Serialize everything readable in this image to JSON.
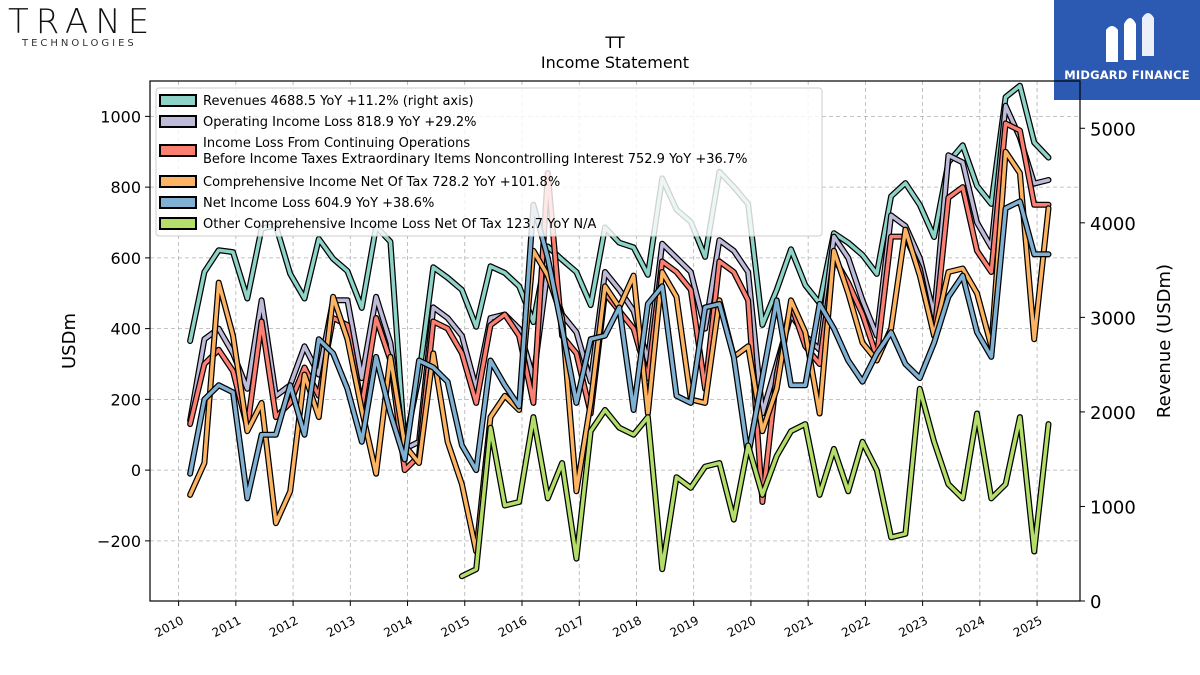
{
  "header": {
    "company_logo_text": "TRANE",
    "company_logo_sub": "TECHNOLOGIES",
    "brand_name": "MIDGARD FINANCE"
  },
  "colors": {
    "revenues": "#8dd3c7",
    "operating_income": "#bebada",
    "pretax_income": "#fb8072",
    "comprehensive_income": "#fdb462",
    "net_income": "#80b1d3",
    "other_comprehensive": "#b3de69",
    "brand_bg": "#2c5ab3"
  },
  "chart_data": {
    "type": "line",
    "title": "TT",
    "subtitle": "Income Statement",
    "ylabel": "USDm",
    "ylabel_right": "Revenue (USDm)",
    "ylim": [
      -370,
      1100
    ],
    "ylim_right": [
      0,
      5500
    ],
    "xlim": [
      2009.5,
      2025.75
    ],
    "yticks": [
      -200,
      0,
      200,
      400,
      600,
      800,
      1000
    ],
    "yticks_right": [
      0,
      1000,
      2000,
      3000,
      4000,
      5000
    ],
    "xticks": [
      "2010",
      "2011",
      "2012",
      "2013",
      "2014",
      "2015",
      "2016",
      "2017",
      "2018",
      "2019",
      "2020",
      "2021",
      "2022",
      "2023",
      "2024",
      "2025"
    ],
    "grid": true,
    "legend_position": "top-left",
    "x": [
      2010.2,
      2010.45,
      2010.7,
      2010.95,
      2011.2,
      2011.45,
      2011.7,
      2011.95,
      2012.2,
      2012.45,
      2012.7,
      2012.95,
      2013.2,
      2013.45,
      2013.7,
      2013.95,
      2014.2,
      2014.45,
      2014.7,
      2014.95,
      2015.2,
      2015.45,
      2015.7,
      2015.95,
      2016.2,
      2016.45,
      2016.7,
      2016.95,
      2017.2,
      2017.45,
      2017.7,
      2017.95,
      2018.2,
      2018.45,
      2018.7,
      2018.95,
      2019.2,
      2019.45,
      2019.7,
      2019.95,
      2020.2,
      2020.45,
      2020.7,
      2020.95,
      2021.2,
      2021.45,
      2021.7,
      2021.95,
      2022.2,
      2022.45,
      2022.7,
      2022.95,
      2023.2,
      2023.45,
      2023.7,
      2023.95,
      2024.2,
      2024.45,
      2024.7,
      2024.95,
      2025.2
    ],
    "series": [
      {
        "name": "Revenues",
        "legend": "Revenues  4688.5 YoY +11.2% (right axis)",
        "axis": "right",
        "color_key": "revenues",
        "values": [
          2750,
          3480,
          3710,
          3690,
          3200,
          3940,
          3970,
          3460,
          3200,
          3830,
          3620,
          3490,
          3100,
          3960,
          3800,
          1640,
          2380,
          3530,
          3420,
          3290,
          2900,
          3540,
          3470,
          3330,
          2950,
          3750,
          3610,
          3480,
          3130,
          3950,
          3790,
          3740,
          3450,
          4470,
          4140,
          4010,
          3640,
          4540,
          4380,
          4200,
          2920,
          3290,
          3720,
          3340,
          3150,
          3890,
          3790,
          3660,
          3460,
          4280,
          4420,
          4190,
          3850,
          4640,
          4820,
          4390,
          4200,
          5330,
          5450,
          4850,
          4690
        ]
      },
      {
        "name": "Operating Income Loss",
        "legend": "Operating Income Loss  818.9 YoY +29.2%",
        "axis": "left",
        "color_key": "operating_income",
        "values": [
          140,
          370,
          400,
          330,
          230,
          480,
          210,
          240,
          350,
          270,
          480,
          480,
          260,
          490,
          360,
          60,
          80,
          460,
          430,
          380,
          230,
          430,
          440,
          400,
          260,
          570,
          440,
          390,
          250,
          560,
          510,
          450,
          310,
          640,
          600,
          560,
          400,
          650,
          620,
          560,
          160,
          300,
          440,
          380,
          340,
          660,
          600,
          480,
          380,
          720,
          690,
          600,
          440,
          890,
          870,
          700,
          630,
          1030,
          940,
          810,
          820
        ]
      },
      {
        "name": "Income Loss From Continuing Operations Before Income Taxes Extraordinary Items Noncontrolling Interest",
        "legend_line1": "Income Loss From Continuing Operations",
        "legend_line2": "Before Income Taxes Extraordinary Items Noncontrolling Interest  752.9 YoY +36.7%",
        "axis": "left",
        "color_key": "pretax_income",
        "values": [
          130,
          300,
          340,
          280,
          120,
          420,
          150,
          190,
          290,
          210,
          430,
          410,
          180,
          430,
          310,
          0,
          40,
          420,
          400,
          330,
          190,
          410,
          440,
          380,
          190,
          840,
          380,
          330,
          160,
          500,
          450,
          400,
          260,
          590,
          560,
          510,
          230,
          590,
          560,
          480,
          -90,
          270,
          470,
          350,
          300,
          600,
          530,
          440,
          320,
          660,
          660,
          570,
          380,
          770,
          800,
          620,
          560,
          980,
          960,
          750,
          750
        ]
      },
      {
        "name": "Comprehensive Income Net Of Tax",
        "legend": "Comprehensive Income Net Of Tax  728.2 YoY +101.8%",
        "axis": "left",
        "color_key": "comprehensive_income",
        "values": [
          -70,
          20,
          530,
          380,
          110,
          190,
          -150,
          -60,
          270,
          150,
          490,
          370,
          170,
          -10,
          320,
          70,
          20,
          330,
          80,
          -40,
          -230,
          150,
          210,
          170,
          620,
          550,
          430,
          -60,
          190,
          520,
          460,
          550,
          160,
          560,
          490,
          200,
          190,
          480,
          320,
          350,
          110,
          230,
          480,
          390,
          160,
          620,
          500,
          360,
          310,
          400,
          680,
          550,
          380,
          560,
          570,
          500,
          350,
          900,
          840,
          370,
          740
        ]
      },
      {
        "name": "Net Income Loss",
        "legend": "Net Income Loss  604.9 YoY +38.6%",
        "axis": "left",
        "color_key": "net_income",
        "values": [
          -10,
          200,
          240,
          220,
          -80,
          100,
          100,
          240,
          100,
          370,
          330,
          230,
          80,
          320,
          160,
          30,
          310,
          290,
          250,
          70,
          0,
          310,
          240,
          180,
          750,
          600,
          400,
          190,
          370,
          380,
          460,
          170,
          470,
          520,
          210,
          190,
          460,
          470,
          320,
          40,
          260,
          480,
          240,
          240,
          470,
          400,
          310,
          250,
          330,
          390,
          300,
          260,
          360,
          490,
          550,
          390,
          320,
          740,
          760,
          610,
          610
        ]
      },
      {
        "name": "Other Comprehensive Income Loss Net Of Tax",
        "legend": "Other Comprehensive Income Loss Net Of Tax  123.7 YoY N/A",
        "axis": "left",
        "color_key": "other_comprehensive",
        "values": [
          null,
          null,
          null,
          null,
          null,
          null,
          null,
          null,
          null,
          null,
          null,
          null,
          null,
          null,
          null,
          null,
          null,
          null,
          null,
          -300,
          -280,
          120,
          -100,
          -90,
          150,
          -80,
          20,
          -250,
          110,
          170,
          120,
          100,
          150,
          -280,
          -20,
          -50,
          10,
          20,
          -140,
          70,
          -70,
          40,
          110,
          130,
          -70,
          60,
          -60,
          80,
          0,
          -190,
          -180,
          230,
          80,
          -40,
          -80,
          160,
          -80,
          -40,
          150,
          -230,
          130
        ]
      }
    ]
  }
}
